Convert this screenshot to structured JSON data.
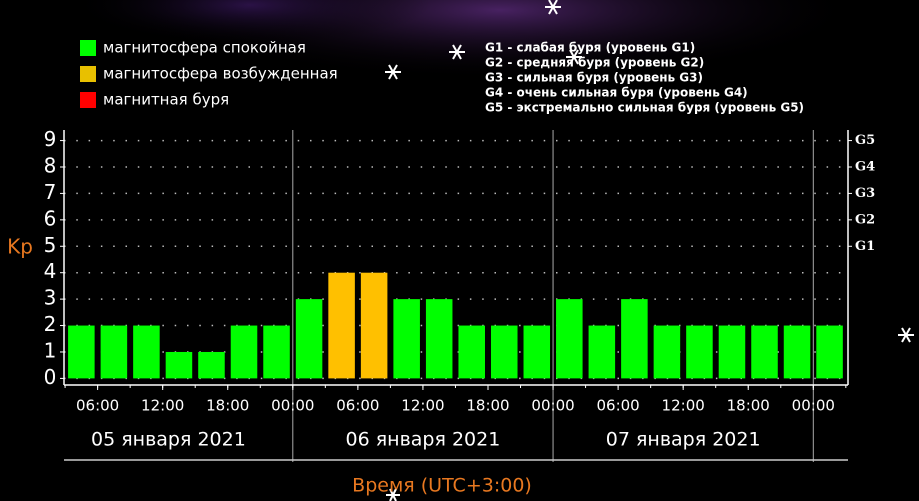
{
  "chart_data": {
    "type": "bar",
    "y_label": "Kp",
    "x_label": "Время (UTC+3:00)",
    "legend": [
      {
        "name": "магнитосфера спокойная",
        "color": "#00ff00"
      },
      {
        "name": "магнитосфера возбужденная",
        "color": "#e8c000"
      },
      {
        "name": "магнитная буря",
        "color": "#ff0000"
      }
    ],
    "storm_levels": [
      "G1 - слабая буря (уровень G1)",
      "G2 - средняя буря (уровень G2)",
      "G3 - сильная буря (уровень G3)",
      "G4 - очень сильная буря (уровень G4)",
      "G5 - экстремально сильная буря (уровень G5)"
    ],
    "x": [
      3,
      6,
      9,
      12,
      15,
      18,
      21,
      24,
      27,
      30,
      33,
      36,
      39,
      42,
      45,
      48,
      51,
      54,
      57,
      60,
      63,
      66,
      69,
      72
    ],
    "values": [
      2,
      2,
      2,
      1,
      1,
      2,
      2,
      3,
      4,
      4,
      3,
      3,
      2,
      2,
      2,
      3,
      2,
      3,
      2,
      2,
      2,
      2,
      2,
      2
    ],
    "colors": [
      "#00ff00",
      "#00ff00",
      "#00ff00",
      "#00ff00",
      "#00ff00",
      "#00ff00",
      "#00ff00",
      "#00ff00",
      "#ffc000",
      "#ffc000",
      "#00ff00",
      "#00ff00",
      "#00ff00",
      "#00ff00",
      "#00ff00",
      "#00ff00",
      "#00ff00",
      "#00ff00",
      "#00ff00",
      "#00ff00",
      "#00ff00",
      "#00ff00",
      "#00ff00",
      "#00ff00"
    ],
    "xlim": [
      2.9,
      75.2
    ],
    "xticks": [
      {
        "value": 6,
        "label": "06:00"
      },
      {
        "value": 12,
        "label": "12:00"
      },
      {
        "value": 18,
        "label": "18:00"
      },
      {
        "value": 24,
        "label": "00:00"
      },
      {
        "value": 30,
        "label": "06:00"
      },
      {
        "value": 36,
        "label": "12:00"
      },
      {
        "value": 42,
        "label": "18:00"
      },
      {
        "value": 48,
        "label": "00:00"
      },
      {
        "value": 54,
        "label": "06:00"
      },
      {
        "value": 60,
        "label": "12:00"
      },
      {
        "value": 66,
        "label": "18:00"
      },
      {
        "value": 72,
        "label": "00:00"
      }
    ],
    "ylim": [
      -0.25,
      9.4
    ],
    "yticks": [
      0,
      1,
      2,
      3,
      4,
      5,
      6,
      7,
      8,
      9
    ],
    "y2lim": [
      -0.25,
      9.4
    ],
    "y2ticks": [
      {
        "value": 5,
        "label": "G1"
      },
      {
        "value": 6,
        "label": "G2"
      },
      {
        "value": 7,
        "label": "G3"
      },
      {
        "value": 8,
        "label": "G4"
      },
      {
        "value": 9,
        "label": "G5"
      }
    ],
    "days": [
      "05 января 2021",
      "06 января 2021",
      "07 января 2021"
    ],
    "grid": true
  }
}
